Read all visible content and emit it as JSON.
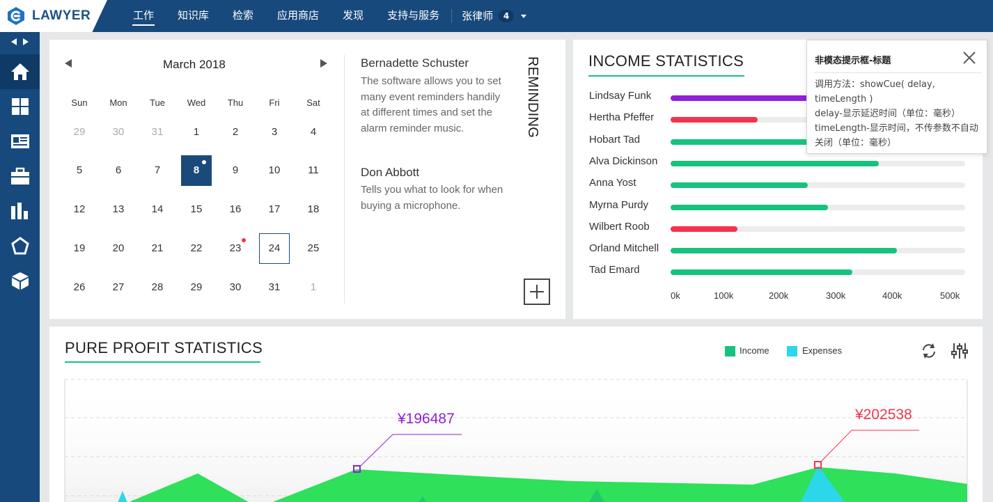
{
  "app": {
    "logo": "LAWYER"
  },
  "nav": {
    "items": [
      {
        "label": "工作",
        "active": true
      },
      {
        "label": "知识库"
      },
      {
        "label": "检索"
      },
      {
        "label": "应用商店"
      },
      {
        "label": "发现"
      },
      {
        "label": "支持与服务"
      }
    ],
    "user": "张律师",
    "badge": "4"
  },
  "sidebar": {
    "items": [
      "home-icon",
      "dashboard-grid-icon",
      "news-icon",
      "briefcase-icon",
      "bar-chart-icon",
      "pentagon-icon",
      "cube-icon"
    ]
  },
  "calendar": {
    "month": "March 2018",
    "weekdays": [
      "Sun",
      "Mon",
      "Tue",
      "Wed",
      "Thu",
      "Fri",
      "Sat"
    ],
    "weeks": [
      [
        "29",
        "30",
        "31",
        "1",
        "2",
        "3",
        "4"
      ],
      [
        "5",
        "6",
        "7",
        "8",
        "9",
        "10",
        "11"
      ],
      [
        "12",
        "13",
        "14",
        "15",
        "16",
        "17",
        "18"
      ],
      [
        "19",
        "20",
        "21",
        "22",
        "23",
        "24",
        "25"
      ],
      [
        "26",
        "27",
        "28",
        "29",
        "30",
        "31",
        "1"
      ]
    ],
    "selected": "8",
    "today": "24"
  },
  "reminders": {
    "heading": "REMINDING",
    "events": [
      {
        "name": "Bernadette Schuster",
        "desc": "The software allows you to set many event reminders handily at different times and set the alarm reminder music."
      },
      {
        "name": "Don Abbott",
        "desc": "Tells you what to look for when buying a microphone."
      }
    ]
  },
  "income": {
    "title": "INCOME STATISTICS",
    "ticks": [
      "0k",
      "100k",
      "200k",
      "300k",
      "400k",
      "500k"
    ],
    "rows": [
      {
        "name": "Lindsay Funk",
        "value": 0.58,
        "color": "#8f1fdb"
      },
      {
        "name": "Hertha Pfeffer",
        "value": 0.295,
        "color": "#f5334d"
      },
      {
        "name": "Hobart Tad",
        "value": 0.62,
        "color": "#16c37e"
      },
      {
        "name": "Alva Dickinson",
        "value": 0.707,
        "color": "#16c37e"
      },
      {
        "name": "Anna Yost",
        "value": 0.465,
        "color": "#16c37e"
      },
      {
        "name": "Myrna Purdy",
        "value": 0.535,
        "color": "#16c37e"
      },
      {
        "name": "Wilbert Roob",
        "value": 0.228,
        "color": "#f5334d"
      },
      {
        "name": "Orland Mitchell",
        "value": 0.768,
        "color": "#16c37e"
      },
      {
        "name": "Tad Emard",
        "value": 0.617,
        "color": "#16c37e"
      }
    ]
  },
  "cue": {
    "title": "非模态提示框-标题",
    "body": "调用方法：showCue( delay, timeLength )\ndelay-显示延迟时间（单位：毫秒）\ntimeLength-显示时间，不传参数不自动关闭（单位：毫秒）"
  },
  "profit": {
    "title": "PURE PROFIT STATISTICS",
    "legend": [
      {
        "label": "Income",
        "color": "#16c37e"
      },
      {
        "label": "Expenses",
        "color": "#2bd7e8"
      }
    ],
    "annotations": [
      {
        "label": "¥196487",
        "color": "#8f1fdb"
      },
      {
        "label": "¥202538",
        "color": "#f5334d"
      }
    ]
  }
}
